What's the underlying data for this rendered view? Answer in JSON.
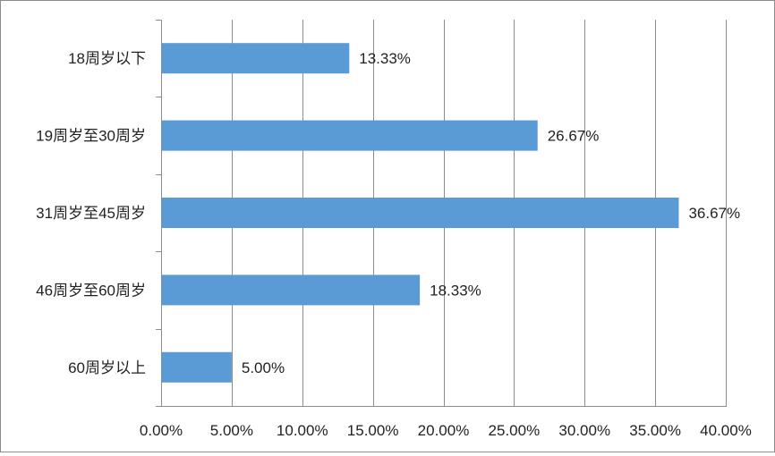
{
  "chart_data": {
    "type": "bar",
    "orientation": "horizontal",
    "categories": [
      "18周岁以下",
      "19周岁至30周岁",
      "31周岁至45周岁",
      "46周岁至60周岁",
      "60周岁以上"
    ],
    "values": [
      13.33,
      26.67,
      36.67,
      18.33,
      5.0
    ],
    "value_labels": [
      "13.33%",
      "26.67%",
      "36.67%",
      "18.33%",
      "5.00%"
    ],
    "xlim": [
      0,
      40
    ],
    "x_ticks": [
      0,
      5,
      10,
      15,
      20,
      25,
      30,
      35,
      40
    ],
    "x_tick_labels": [
      "0.00%",
      "5.00%",
      "10.00%",
      "15.00%",
      "20.00%",
      "25.00%",
      "30.00%",
      "35.00%",
      "40.00%"
    ],
    "title": "",
    "xlabel": "",
    "ylabel": "",
    "grid": "vertical",
    "legend": "none",
    "bar_color": "#5b9bd5",
    "grid_color": "#8c8c8c"
  }
}
